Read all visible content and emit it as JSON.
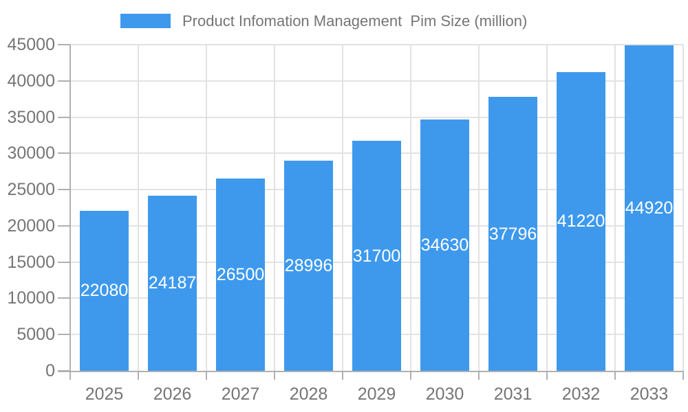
{
  "legend": {
    "label": "Product Infomation Management  Pim Size (million)"
  },
  "colors": {
    "bar": "#3E99ED",
    "grid": "#e2e2e2",
    "axis": "#b0b0b0",
    "axis_text": "#757575",
    "bar_label_text": "#ffffff",
    "background": "#ffffff"
  },
  "chart_data": {
    "type": "bar",
    "title": "Product Infomation Management  Pim Size (million)",
    "categories": [
      "2025",
      "2026",
      "2027",
      "2028",
      "2029",
      "2030",
      "2031",
      "2032",
      "2033"
    ],
    "values": [
      22080,
      24187,
      26500,
      28996,
      31700,
      34630,
      37796,
      41220,
      44920
    ],
    "xlabel": "",
    "ylabel": "",
    "ylim": [
      0,
      45000
    ],
    "ytick_step": 5000,
    "yticks": [
      0,
      5000,
      10000,
      15000,
      20000,
      25000,
      30000,
      35000,
      40000,
      45000
    ],
    "grid": true,
    "legend_position": "top",
    "bar_labels_inside": true
  }
}
